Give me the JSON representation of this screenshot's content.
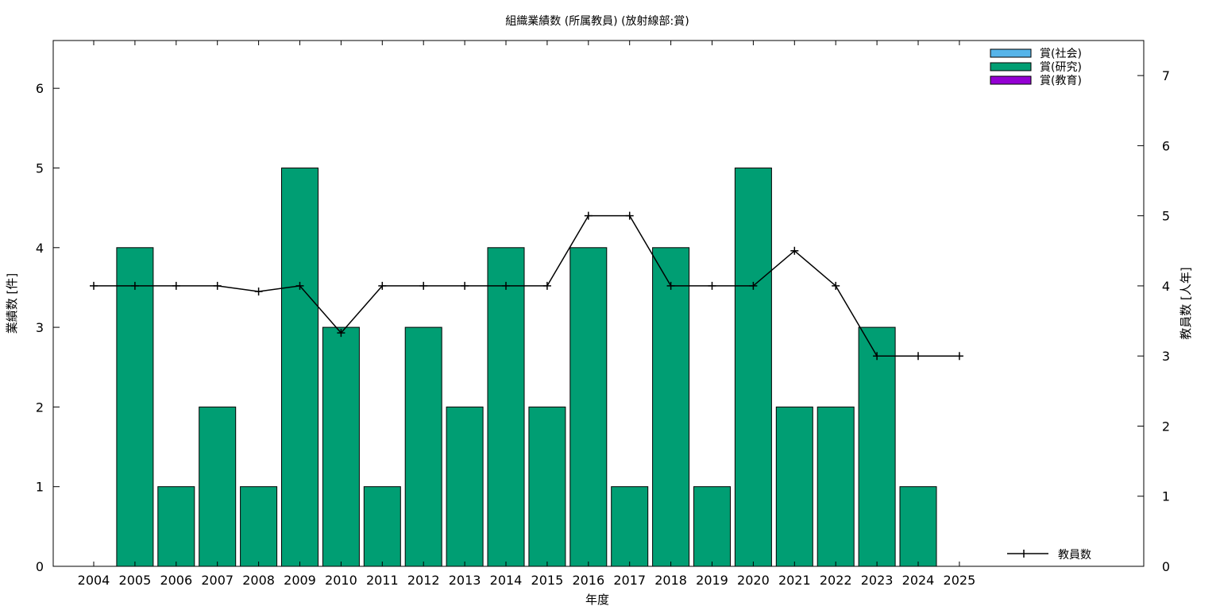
{
  "chart_data": {
    "type": "bar",
    "title": "組織業績数 (所属教員) (放射線部:賞)",
    "xlabel": "年度",
    "ylabel": "業績数 [件]",
    "y2label": "教員数 [人年]",
    "categories": [
      "2004",
      "2005",
      "2006",
      "2007",
      "2008",
      "2009",
      "2010",
      "2011",
      "2012",
      "2013",
      "2014",
      "2015",
      "2016",
      "2017",
      "2018",
      "2019",
      "2020",
      "2021",
      "2022",
      "2023",
      "2024",
      "2025"
    ],
    "ylim": [
      0,
      6.6
    ],
    "y2lim": [
      0,
      7.5
    ],
    "yticks": [
      0,
      1,
      2,
      3,
      4,
      5,
      6
    ],
    "y2ticks": [
      0,
      1,
      2,
      3,
      4,
      5,
      6,
      7
    ],
    "series": [
      {
        "name": "賞(社会)",
        "color": "#56b4e9",
        "values": [
          0,
          0,
          0,
          0,
          0,
          0,
          0,
          0,
          0,
          0,
          0,
          0,
          0,
          0,
          0,
          0,
          0,
          0,
          0,
          0,
          0,
          0
        ]
      },
      {
        "name": "賞(研究)",
        "color": "#009e73",
        "values": [
          0,
          4,
          1,
          2,
          1,
          5,
          3,
          1,
          3,
          2,
          4,
          2,
          4,
          1,
          4,
          1,
          5,
          2,
          2,
          3,
          1,
          0
        ]
      },
      {
        "name": "賞(教育)",
        "color": "#9400d3",
        "values": [
          0,
          0,
          0,
          0,
          0,
          0,
          0,
          0,
          0,
          0,
          0,
          0,
          0,
          0,
          0,
          0,
          0,
          0,
          0,
          0,
          0,
          0
        ]
      }
    ],
    "line": {
      "name": "教員数",
      "color": "#000000",
      "axis": "y2",
      "values": [
        4,
        4,
        4,
        4,
        3.92,
        4,
        3.33,
        4,
        4,
        4,
        4,
        4,
        5,
        5,
        4,
        4,
        4,
        4.5,
        4,
        3,
        3,
        3
      ]
    },
    "legend": "top-right (bars), bottom-right (line)",
    "grid": false
  }
}
